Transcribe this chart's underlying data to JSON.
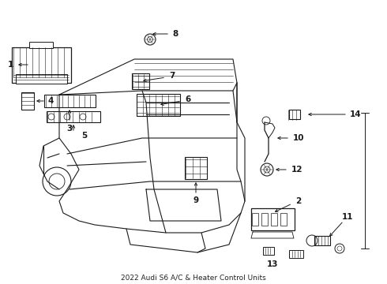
{
  "title": "2022 Audi S6 A/C & Heater Control Units",
  "bg_color": "#ffffff",
  "line_color": "#1a1a1a",
  "figsize": [
    4.9,
    3.6
  ],
  "dpi": 100
}
